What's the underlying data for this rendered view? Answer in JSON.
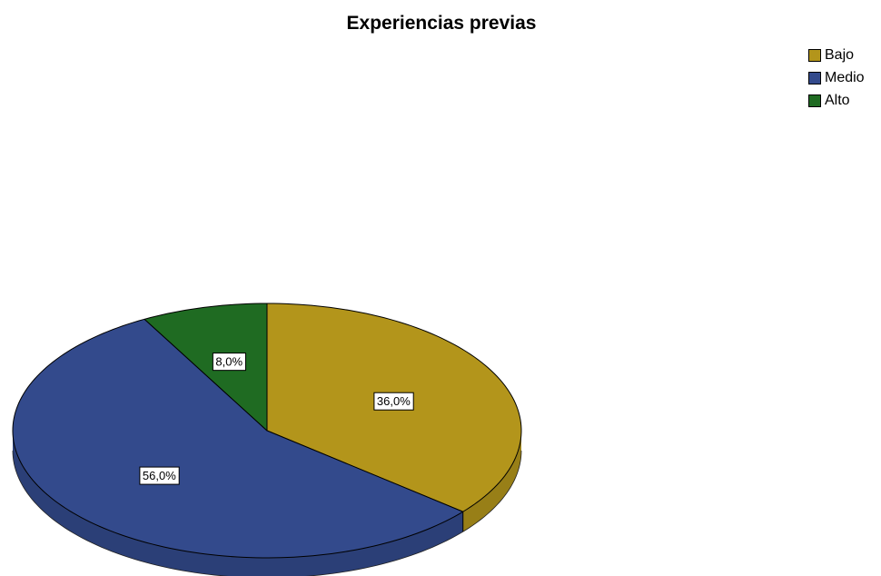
{
  "chart_data": {
    "type": "pie",
    "title": "Experiencias previas",
    "slices": [
      {
        "label": "Bajo",
        "value": 36.0,
        "display": "36,0%",
        "color": "#b3951b"
      },
      {
        "label": "Medio",
        "value": 56.0,
        "display": "56,0%",
        "color": "#334a8c"
      },
      {
        "label": "Alto",
        "value": 8.0,
        "display": "8,0%",
        "color": "#1f6b22"
      }
    ],
    "legend_position": "top-right",
    "style": "3d-tilted"
  }
}
